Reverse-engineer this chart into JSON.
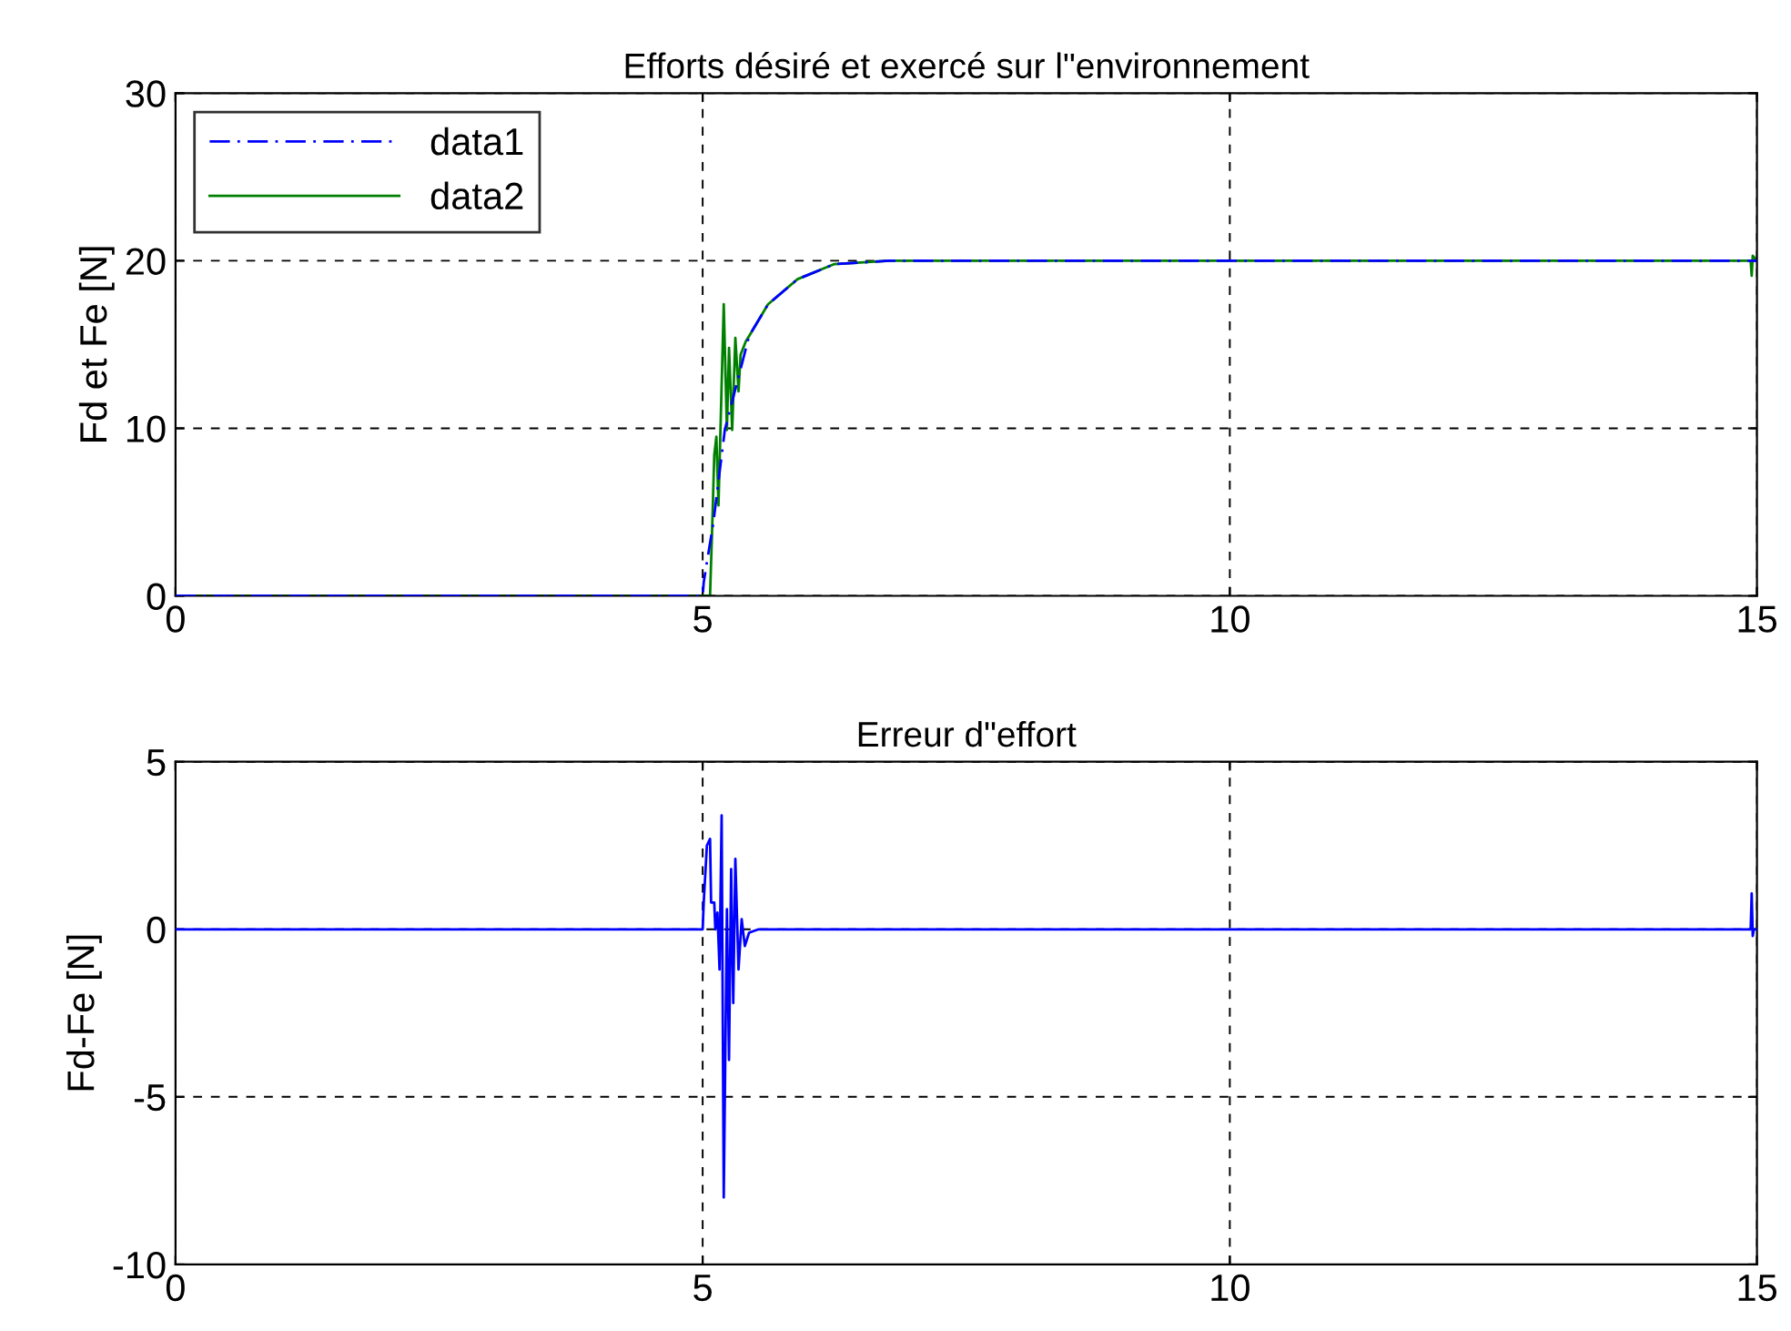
{
  "chart_data": [
    {
      "type": "line",
      "title": "Efforts désiré et exercé sur l\"environnement",
      "ylabel": "Fd et Fe [N]",
      "xlim": [
        0,
        15
      ],
      "ylim": [
        0,
        30
      ],
      "xticks": [
        0,
        5,
        10,
        15
      ],
      "yticks": [
        0,
        10,
        20,
        30
      ],
      "grid": true,
      "legend": "top left",
      "series": [
        {
          "name": "data1",
          "color": "#0000ff",
          "line_style": "dashed",
          "x": [
            0,
            5,
            5.01,
            5.04,
            5.1,
            5.21,
            5.44,
            5.62,
            5.9,
            6.25,
            6.77,
            15
          ],
          "values": [
            0,
            0,
            0.8,
            2,
            4.3,
            9.9,
            15.5,
            17.4,
            18.9,
            19.8,
            20,
            20
          ]
        },
        {
          "name": "data2",
          "color": "#008000",
          "line_style": "solid",
          "x": [
            0,
            5.07,
            5.09,
            5.11,
            5.13,
            5.15,
            5.2,
            5.23,
            5.25,
            5.28,
            5.31,
            5.34,
            5.36,
            5.41,
            5.44,
            5.62,
            5.9,
            6.25,
            6.77,
            14.94,
            14.95,
            14.96,
            15
          ],
          "values": [
            0,
            0,
            4,
            8.4,
            9.5,
            5.4,
            17.4,
            9.9,
            14.8,
            9.9,
            15.4,
            12.2,
            14.4,
            15.2,
            15.5,
            17.4,
            18.9,
            19.8,
            20,
            20,
            19.1,
            20.3,
            20
          ]
        }
      ]
    },
    {
      "type": "line",
      "title": "Erreur d\"effort",
      "ylabel": "Fd-Fe [N]",
      "xlim": [
        0,
        15
      ],
      "ylim": [
        -10,
        5
      ],
      "xticks": [
        0,
        5,
        10,
        15
      ],
      "yticks": [
        -10,
        -5,
        0,
        5
      ],
      "grid": true,
      "series": [
        {
          "color": "#0000ff",
          "line_style": "solid",
          "x": [
            0,
            5,
            5.01,
            5.04,
            5.07,
            5.08,
            5.11,
            5.12,
            5.14,
            5.16,
            5.18,
            5.2,
            5.23,
            5.25,
            5.27,
            5.29,
            5.31,
            5.34,
            5.37,
            5.4,
            5.44,
            5.53,
            14.94,
            14.95,
            14.96,
            14.97,
            15
          ],
          "values": [
            0,
            0,
            0.8,
            2.5,
            2.7,
            0.8,
            0.8,
            0,
            0.5,
            -1.2,
            3.4,
            -8,
            0.6,
            -3.9,
            1.8,
            -2.2,
            2.1,
            -1.2,
            0.3,
            -0.5,
            -0.1,
            0,
            0,
            1.07,
            -0.2,
            0,
            0
          ]
        }
      ]
    }
  ]
}
